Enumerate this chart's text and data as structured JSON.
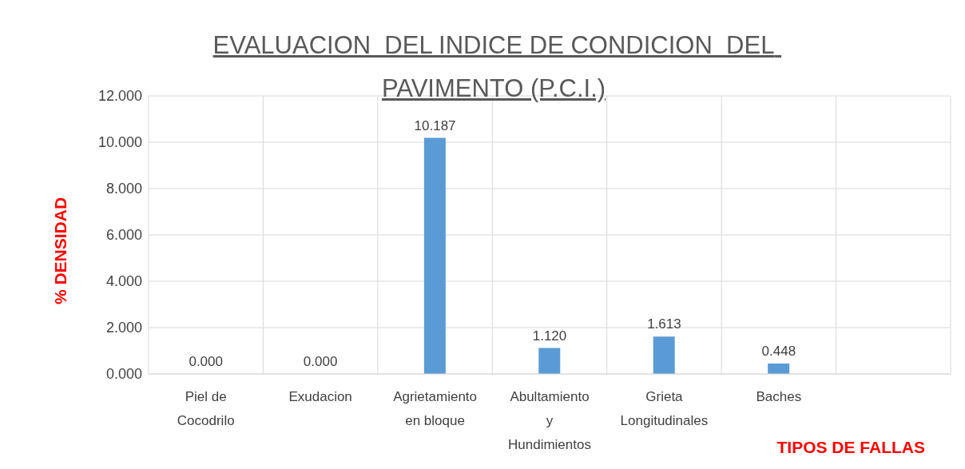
{
  "chart_data": {
    "type": "bar",
    "title": "EVALUACION  DEL INDICE DE CONDICION  DEL PAVIMENTO (P.C.I.)",
    "ylabel": "% DENSIDAD",
    "xlabel": "TIPOS DE FALLAS",
    "categories": [
      "Piel de Cocodrilo",
      "Exudacion",
      "Agrietamiento en bloque",
      "Abultamiento y Hundimientos",
      "Grieta Longitudinales",
      "Baches",
      null
    ],
    "values": [
      0,
      0,
      10.187,
      1.12,
      1.613,
      0.448,
      null
    ],
    "value_labels": [
      "0.000",
      "0.000",
      "10.187",
      "1.120",
      "1.613",
      "0.448",
      null
    ],
    "color": "#5b9bd5",
    "ylim": [
      0,
      12
    ],
    "yticks": [
      {
        "value": 0,
        "label": "0.000"
      },
      {
        "value": 2,
        "label": "2.000"
      },
      {
        "value": 4,
        "label": "4.000"
      },
      {
        "value": 6,
        "label": "6.000"
      },
      {
        "value": 8,
        "label": "8.000"
      },
      {
        "value": 10,
        "label": "10.000"
      },
      {
        "value": 12,
        "label": "12.000"
      }
    ],
    "grid": true,
    "legend": false
  }
}
